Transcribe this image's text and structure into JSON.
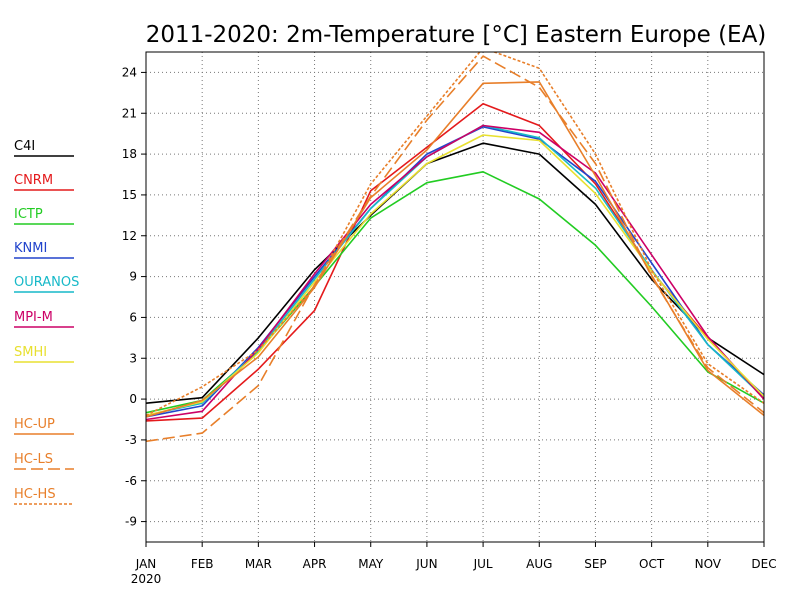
{
  "chart_data": {
    "type": "line",
    "title": "2011-2020: 2m-Temperature [°C] Eastern Europe (EA)",
    "xlabel": "",
    "ylabel": "",
    "categories": [
      "JAN",
      "FEB",
      "MAR",
      "APR",
      "MAY",
      "JUN",
      "JUL",
      "AUG",
      "SEP",
      "OCT",
      "NOV",
      "DEC"
    ],
    "year_label": "2020",
    "ylim": [
      -10.5,
      25.5
    ],
    "yticks": [
      -9,
      -6,
      -3,
      0,
      3,
      6,
      9,
      12,
      15,
      18,
      21,
      24
    ],
    "grid": true,
    "legend_position": "left",
    "series": [
      {
        "name": "C4I",
        "color": "#000000",
        "dash": "solid",
        "values": [
          -0.3,
          0.1,
          4.5,
          9.5,
          13.5,
          17.3,
          18.8,
          18.0,
          14.3,
          8.8,
          4.5,
          1.8
        ]
      },
      {
        "name": "CNRM",
        "color": "#e41a1c",
        "dash": "solid",
        "values": [
          -1.6,
          -1.4,
          2.2,
          6.5,
          15.3,
          18.5,
          21.7,
          20.1,
          15.8,
          9.4,
          4.5,
          0.0
        ]
      },
      {
        "name": "ICTP",
        "color": "#22cc22",
        "dash": "solid",
        "values": [
          -1.0,
          -0.1,
          3.5,
          8.3,
          13.3,
          15.9,
          16.7,
          14.7,
          11.3,
          6.8,
          2.0,
          -0.3
        ]
      },
      {
        "name": "KNMI",
        "color": "#2244cc",
        "dash": "solid",
        "values": [
          -1.3,
          -0.5,
          3.8,
          9.0,
          14.0,
          18.0,
          20.0,
          19.1,
          16.0,
          10.0,
          4.0,
          0.3
        ]
      },
      {
        "name": "OURANOS",
        "color": "#17b9c8",
        "dash": "solid",
        "values": [
          -1.2,
          -0.3,
          3.6,
          8.8,
          14.0,
          17.8,
          20.1,
          19.2,
          15.5,
          9.5,
          4.0,
          0.1
        ]
      },
      {
        "name": "MPI-M",
        "color": "#cc0066",
        "dash": "solid",
        "values": [
          -1.5,
          -0.9,
          3.7,
          9.2,
          14.3,
          17.8,
          20.1,
          19.6,
          16.6,
          10.6,
          4.6,
          0.0
        ]
      },
      {
        "name": "SMHI",
        "color": "#e8e030",
        "dash": "solid",
        "values": [
          -1.2,
          -0.2,
          3.4,
          8.6,
          13.6,
          17.3,
          19.4,
          19.0,
          15.1,
          9.4,
          4.4,
          0.2
        ]
      },
      {
        "name": "HC-UP",
        "color": "#e87f2a",
        "dash": "solid",
        "values": [
          -1.3,
          -0.1,
          3.1,
          8.2,
          14.8,
          18.3,
          23.2,
          23.3,
          16.4,
          9.1,
          2.1,
          -1.2
        ]
      },
      {
        "name": "HC-LS",
        "color": "#e87f2a",
        "dash": "dashed",
        "values": [
          -3.1,
          -2.5,
          1.0,
          8.4,
          14.9,
          20.5,
          25.2,
          22.9,
          17.3,
          9.0,
          2.3,
          -1.0
        ]
      },
      {
        "name": "HC-HS",
        "color": "#e87f2a",
        "dash": "dotted",
        "values": [
          -1.2,
          0.9,
          3.6,
          8.3,
          15.8,
          20.8,
          25.8,
          24.3,
          18.0,
          9.5,
          2.6,
          -0.3
        ]
      }
    ]
  }
}
